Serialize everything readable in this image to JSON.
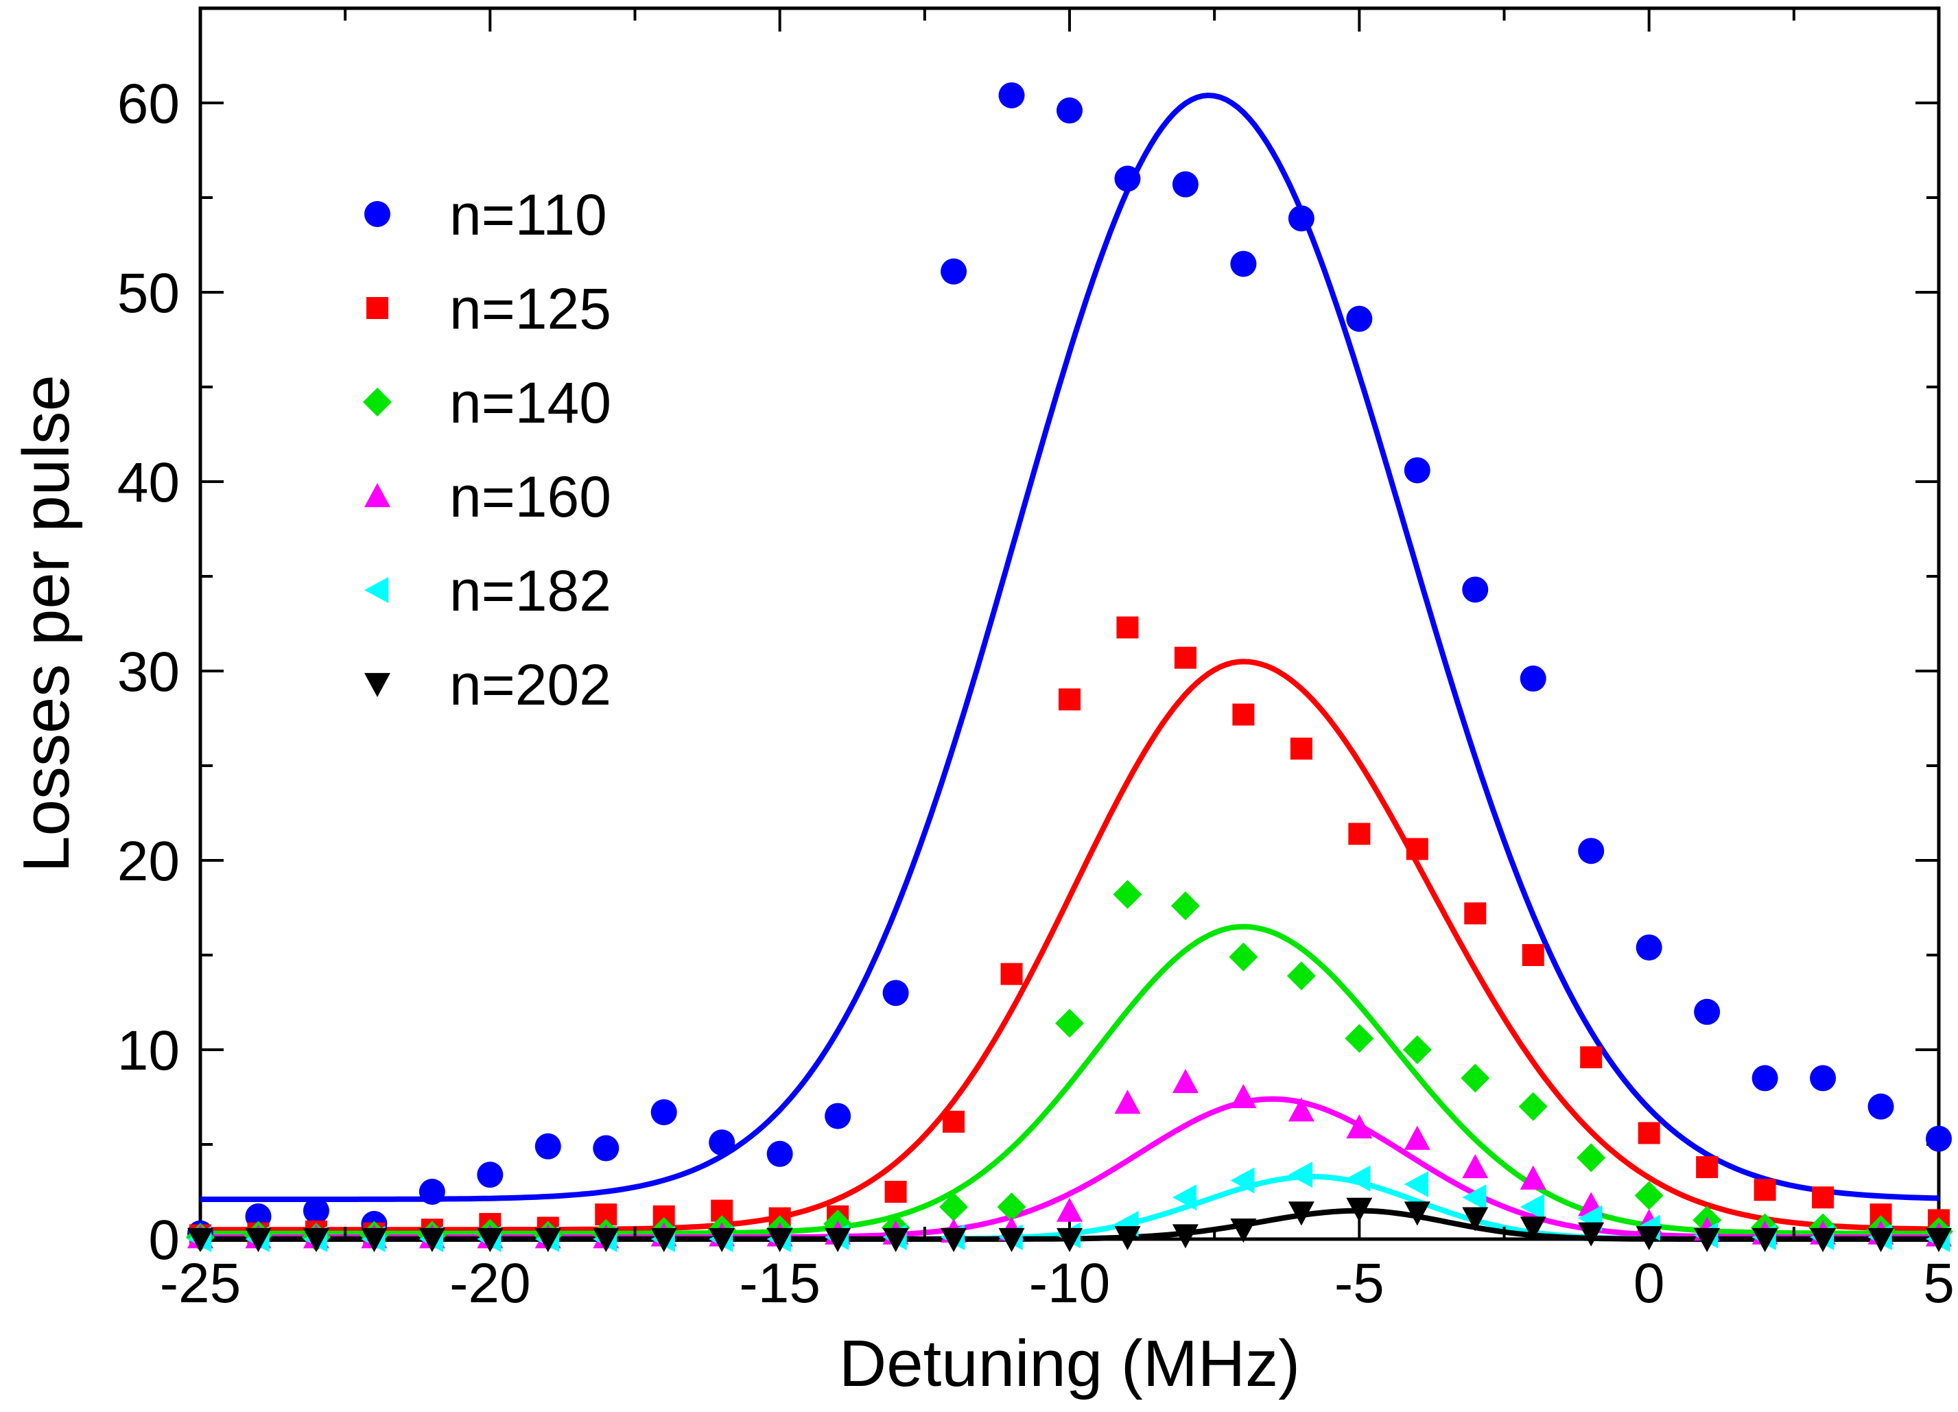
{
  "chart_data": {
    "type": "scatter",
    "xlabel": "Detuning (MHz)",
    "ylabel": "Losses per pulse",
    "xlim": [
      -25,
      5
    ],
    "ylim": [
      0,
      65
    ],
    "x_ticks": [
      -25,
      -20,
      -15,
      -10,
      -5,
      0,
      5
    ],
    "x_tick_labels": [
      "-25",
      "-20",
      "-15",
      "-10",
      "-5",
      "0",
      "5"
    ],
    "y_ticks": [
      0,
      10,
      20,
      30,
      40,
      50,
      60
    ],
    "y_tick_labels": [
      "0",
      "10",
      "20",
      "30",
      "40",
      "50",
      "60"
    ],
    "legend_position": "top-left",
    "series": [
      {
        "name": "n=110",
        "color": "#0000ff",
        "marker": "circle",
        "x": [
          -25,
          -24,
          -23,
          -22,
          -21,
          -20,
          -19,
          -18,
          -17,
          -16,
          -15,
          -14,
          -13,
          -12,
          -11,
          -10,
          -9,
          -8,
          -7,
          -6,
          -5,
          -4,
          -3,
          -2,
          -1,
          0,
          1,
          2,
          3,
          4,
          5
        ],
        "y": [
          0.3,
          1.2,
          1.5,
          0.8,
          2.5,
          3.4,
          4.9,
          4.8,
          6.7,
          5.1,
          4.5,
          6.5,
          13,
          51.1,
          60.4,
          59.6,
          56,
          55.7,
          51.5,
          53.9,
          48.6,
          40.6,
          34.3,
          29.6,
          20.5,
          15.4,
          12,
          8.5,
          8.5,
          7,
          5.3
        ],
        "fit": {
          "peak": 58.3,
          "center": -7.6,
          "sigma_left": 3.3,
          "sigma_right": 3.4,
          "offset": 2.1
        }
      },
      {
        "name": "n=125",
        "color": "#ff0000",
        "marker": "square",
        "x": [
          -25,
          -24,
          -23,
          -22,
          -21,
          -20,
          -19,
          -18,
          -17,
          -16,
          -15,
          -14,
          -13,
          -12,
          -11,
          -10,
          -9,
          -8,
          -7,
          -6,
          -5,
          -4,
          -3,
          -2,
          -1,
          0,
          1,
          2,
          3,
          4,
          5
        ],
        "y": [
          0.2,
          0.3,
          0.4,
          0.3,
          0.5,
          0.8,
          0.6,
          1.3,
          1.2,
          1.5,
          1.1,
          1.2,
          2.5,
          6.2,
          14,
          28.5,
          32.3,
          30.7,
          27.7,
          25.9,
          21.4,
          20.6,
          17.2,
          15,
          9.6,
          5.6,
          3.8,
          2.6,
          2.2,
          1.3,
          1
        ],
        "fit": {
          "peak": 30,
          "center": -7,
          "sigma_left": 2.9,
          "sigma_right": 3.2,
          "offset": 0.5
        }
      },
      {
        "name": "n=140",
        "color": "#00e600",
        "marker": "diamond",
        "x": [
          -25,
          -24,
          -23,
          -22,
          -21,
          -20,
          -19,
          -18,
          -17,
          -16,
          -15,
          -14,
          -13,
          -12,
          -11,
          -10,
          -9,
          -8,
          -7,
          -6,
          -5,
          -4,
          -3,
          -2,
          -1,
          0,
          1,
          2,
          3,
          4,
          5
        ],
        "y": [
          0.1,
          0.2,
          0.1,
          0.2,
          0.2,
          0.3,
          0.2,
          0.3,
          0.4,
          0.5,
          0.5,
          0.8,
          0.6,
          1.7,
          1.7,
          11.4,
          18.2,
          17.6,
          14.9,
          13.9,
          10.6,
          10,
          8.5,
          7,
          4.3,
          2.3,
          1,
          0.6,
          0.6,
          0.5,
          0.4
        ],
        "fit": {
          "peak": 16.2,
          "center": -7,
          "sigma_left": 2.5,
          "sigma_right": 2.6,
          "offset": 0.3
        }
      },
      {
        "name": "n=160",
        "color": "#ff00ff",
        "marker": "triangle-up",
        "x": [
          -25,
          -24,
          -23,
          -22,
          -21,
          -20,
          -19,
          -18,
          -17,
          -16,
          -15,
          -14,
          -13,
          -12,
          -11,
          -10,
          -9,
          -8,
          -7,
          -6,
          -5,
          -4,
          -3,
          -2,
          -1,
          0,
          1,
          2,
          3,
          4,
          5
        ],
        "y": [
          0.1,
          0.1,
          0.1,
          0.1,
          0.1,
          0.1,
          0.1,
          0.1,
          0.2,
          0.2,
          0.2,
          0.3,
          0.3,
          0.4,
          0.5,
          1.5,
          7.2,
          8.3,
          7.5,
          6.8,
          5.9,
          5.3,
          3.8,
          3.2,
          1.8,
          0.9,
          0.5,
          0.3,
          0.3,
          0.3,
          0.2
        ],
        "fit": {
          "peak": 7.3,
          "center": -6.5,
          "sigma_left": 2.3,
          "sigma_right": 2.3,
          "offset": 0.1
        }
      },
      {
        "name": "n=182",
        "color": "#00ffff",
        "marker": "triangle-left",
        "x": [
          -25,
          -24,
          -23,
          -22,
          -21,
          -20,
          -19,
          -18,
          -17,
          -16,
          -15,
          -14,
          -13,
          -12,
          -11,
          -10,
          -9,
          -8,
          -7,
          -6,
          -5,
          -4,
          -3,
          -2,
          -1,
          0,
          1,
          2,
          3,
          4,
          5
        ],
        "y": [
          0,
          0,
          0,
          0,
          0,
          0,
          0,
          0,
          0,
          0,
          0,
          0.1,
          0.1,
          0.1,
          0.1,
          0.2,
          0.8,
          2.2,
          3.1,
          3.4,
          3.2,
          2.9,
          2.2,
          1.7,
          1.1,
          0.6,
          0.2,
          0.1,
          0.1,
          0.1,
          0
        ],
        "fit": {
          "peak": 3.3,
          "center": -5.8,
          "sigma_left": 1.9,
          "sigma_right": 1.8,
          "offset": 0
        }
      },
      {
        "name": "n=202",
        "color": "#000000",
        "marker": "triangle-down",
        "x": [
          -25,
          -24,
          -23,
          -22,
          -21,
          -20,
          -19,
          -18,
          -17,
          -16,
          -15,
          -14,
          -13,
          -12,
          -11,
          -10,
          -9,
          -8,
          -7,
          -6,
          -5,
          -4,
          -3,
          -2,
          -1,
          0,
          1,
          2,
          3,
          4,
          5
        ],
        "y": [
          0,
          0,
          0,
          0,
          0,
          0,
          0,
          0,
          0,
          0,
          0,
          0,
          0,
          0,
          0,
          0,
          0.1,
          0.2,
          0.5,
          1.4,
          1.6,
          1.4,
          1.1,
          0.6,
          0.3,
          0.1,
          0,
          0,
          0,
          0,
          0
        ],
        "fit": {
          "peak": 1.5,
          "center": -5,
          "sigma_left": 1.7,
          "sigma_right": 1.5,
          "offset": 0
        }
      }
    ]
  }
}
